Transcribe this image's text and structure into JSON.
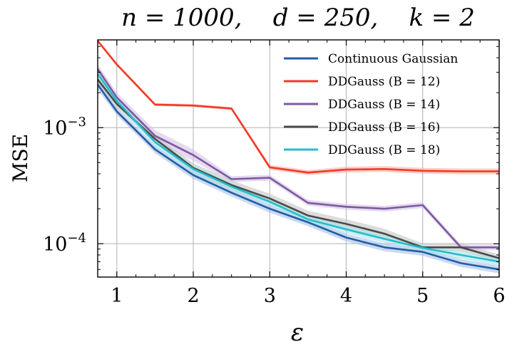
{
  "chart_data": {
    "type": "line",
    "title": "n = 1000,    d = 250,    k = 2",
    "xlabel": "ε",
    "ylabel": "MSE",
    "xscale": "linear",
    "yscale": "log",
    "xlim": [
      0.75,
      6.0
    ],
    "ylim": [
      5.16e-05,
      0.0057
    ],
    "xticks": [
      1,
      2,
      3,
      4,
      5,
      6
    ],
    "xtick_labels": [
      "1",
      "2",
      "3",
      "4",
      "5",
      "6"
    ],
    "yticks": [
      0.0001,
      0.001
    ],
    "ytick_labels": [
      {
        "base": "10",
        "exp": "−4"
      },
      {
        "base": "10",
        "exp": "−3"
      }
    ],
    "grid": true,
    "legend_position": "top-right",
    "x": [
      0.75,
      1.0,
      1.5,
      2.0,
      2.5,
      3.0,
      3.5,
      4.0,
      4.5,
      5.0,
      5.5,
      6.0
    ],
    "series": [
      {
        "name": "Continuous Gaussian",
        "color": "#1f5ea8",
        "band_color": "#a9bfe6",
        "values": [
          0.00235,
          0.00138,
          0.00065,
          0.00039,
          0.000275,
          0.0002,
          0.000153,
          0.000113,
          9.3e-05,
          8.5e-05,
          6.8e-05,
          6e-05
        ],
        "band": [
          0.1,
          0.08,
          0.08,
          0.08,
          0.08,
          0.08,
          0.08,
          0.08,
          0.08,
          0.08,
          0.08,
          0.08
        ]
      },
      {
        "name": "DDGauss (B = 12)",
        "color": "#f23a24",
        "band_color": "#f5b0a6",
        "values": [
          0.0056,
          0.0035,
          0.00158,
          0.00155,
          0.00146,
          0.000455,
          0.00041,
          0.000435,
          0.00044,
          0.000425,
          0.00042,
          0.00042
        ],
        "band": [
          0.03,
          0.03,
          0.03,
          0.03,
          0.03,
          0.05,
          0.05,
          0.06,
          0.06,
          0.06,
          0.06,
          0.06
        ]
      },
      {
        "name": "DDGauss (B = 14)",
        "color": "#7e58a2",
        "band_color": "#d4c3e6",
        "values": [
          0.0032,
          0.00182,
          0.00085,
          0.00058,
          0.00036,
          0.00037,
          0.000225,
          0.000208,
          0.0002,
          0.000215,
          9.3e-05,
          9.3e-05
        ],
        "band": [
          0.1,
          0.1,
          0.12,
          0.12,
          0.06,
          0.06,
          0.06,
          0.06,
          0.06,
          0.06,
          0.06,
          0.06
        ]
      },
      {
        "name": "DDGauss (B = 16)",
        "color": "#4a4a4a",
        "band_color": "#c4c4c4",
        "values": [
          0.0026,
          0.0016,
          0.0008,
          0.00045,
          0.00032,
          0.000245,
          0.000175,
          0.000148,
          0.000122,
          9.3e-05,
          9.3e-05,
          7.5e-05
        ],
        "band": [
          0.08,
          0.08,
          0.08,
          0.1,
          0.1,
          0.1,
          0.1,
          0.1,
          0.1,
          0.08,
          0.08,
          0.08
        ]
      },
      {
        "name": "DDGauss (B = 18)",
        "color": "#25bccc",
        "band_color": "#a9e4ea",
        "values": [
          0.0029,
          0.0017,
          0.00075,
          0.00044,
          0.00031,
          0.00023,
          0.000162,
          0.000133,
          0.00011,
          9.2e-05,
          8e-05,
          7e-05
        ],
        "band": [
          0.08,
          0.08,
          0.08,
          0.08,
          0.08,
          0.08,
          0.08,
          0.08,
          0.08,
          0.08,
          0.08,
          0.08
        ]
      }
    ]
  }
}
